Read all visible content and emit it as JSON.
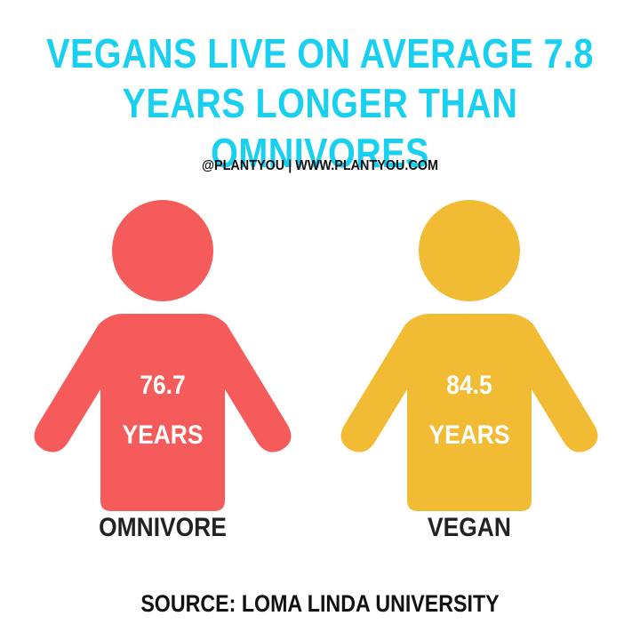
{
  "title_lines": [
    "VEGANS LIVE ON AVERAGE 7.8",
    "YEARS LONGER THAN OMNIVORES"
  ],
  "credit": "@PLANTYOU | WWW.PLANTYOU.COM",
  "figures": [
    {
      "value": "76.7",
      "unit": "YEARS",
      "label": "OMNIVORE",
      "color": "#f65b5c"
    },
    {
      "value": "84.5",
      "unit": "YEARS",
      "label": "VEGAN",
      "color": "#f2bb34"
    }
  ],
  "source": "SOURCE: LOMA LINDA UNIVERSITY"
}
